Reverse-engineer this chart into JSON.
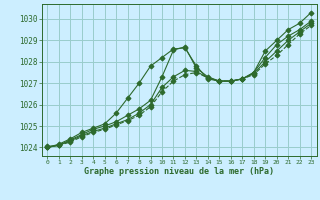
{
  "title": "Graphe pression niveau de la mer (hPa)",
  "bg_color": "#cceeff",
  "grid_color": "#99cccc",
  "line_color": "#2d6a2d",
  "xlim": [
    -0.5,
    23.5
  ],
  "ylim": [
    1023.6,
    1030.7
  ],
  "xticks": [
    0,
    1,
    2,
    3,
    4,
    5,
    6,
    7,
    8,
    9,
    10,
    11,
    12,
    13,
    14,
    15,
    16,
    17,
    18,
    19,
    20,
    21,
    22,
    23
  ],
  "yticks": [
    1024,
    1025,
    1026,
    1027,
    1028,
    1029,
    1030
  ],
  "series": [
    {
      "x": [
        0,
        1,
        2,
        3,
        4,
        5,
        6,
        7,
        8,
        9,
        10,
        11,
        12,
        13,
        14,
        15,
        16,
        17,
        18,
        19,
        20,
        21,
        22,
        23
      ],
      "y": [
        1024.0,
        1024.15,
        1024.4,
        1024.7,
        1024.9,
        1025.1,
        1025.6,
        1026.3,
        1027.0,
        1027.8,
        1028.2,
        1028.6,
        1028.65,
        1027.8,
        1027.2,
        1027.1,
        1027.1,
        1027.2,
        1027.5,
        1028.5,
        1029.0,
        1029.5,
        1029.8,
        1030.3
      ],
      "style": "solid",
      "marker": "D",
      "ms": 2.5
    },
    {
      "x": [
        0,
        1,
        2,
        3,
        4,
        5,
        6,
        7,
        8,
        9,
        10,
        11,
        12,
        13,
        14,
        15,
        16,
        17,
        18,
        19,
        20,
        21,
        22,
        23
      ],
      "y": [
        1024.0,
        1024.1,
        1024.35,
        1024.6,
        1024.85,
        1025.0,
        1025.2,
        1025.5,
        1025.8,
        1026.2,
        1027.3,
        1028.55,
        1028.7,
        1027.7,
        1027.3,
        1027.1,
        1027.1,
        1027.2,
        1027.5,
        1028.2,
        1028.8,
        1029.2,
        1029.5,
        1029.9
      ],
      "style": "solid",
      "marker": "D",
      "ms": 2.5
    },
    {
      "x": [
        0,
        1,
        2,
        3,
        4,
        5,
        6,
        7,
        8,
        9,
        10,
        11,
        12,
        13,
        14,
        15,
        16,
        17,
        18,
        19,
        20,
        21,
        22,
        23
      ],
      "y": [
        1024.05,
        1024.1,
        1024.3,
        1024.55,
        1024.75,
        1024.9,
        1025.1,
        1025.3,
        1025.6,
        1026.0,
        1026.8,
        1027.3,
        1027.6,
        1027.55,
        1027.25,
        1027.1,
        1027.1,
        1027.2,
        1027.45,
        1028.0,
        1028.5,
        1029.0,
        1029.4,
        1029.8
      ],
      "style": "solid",
      "marker": "D",
      "ms": 2.5
    },
    {
      "x": [
        0,
        1,
        2,
        3,
        4,
        5,
        6,
        7,
        8,
        9,
        10,
        11,
        12,
        13,
        14,
        15,
        16,
        17,
        18,
        19,
        20,
        21,
        22,
        23
      ],
      "y": [
        1024.0,
        1024.1,
        1024.25,
        1024.5,
        1024.7,
        1024.85,
        1025.05,
        1025.25,
        1025.5,
        1025.9,
        1026.6,
        1027.1,
        1027.4,
        1027.5,
        1027.25,
        1027.1,
        1027.1,
        1027.2,
        1027.4,
        1027.9,
        1028.3,
        1028.8,
        1029.3,
        1029.7
      ],
      "style": "dashed",
      "marker": "D",
      "ms": 2.5
    }
  ]
}
